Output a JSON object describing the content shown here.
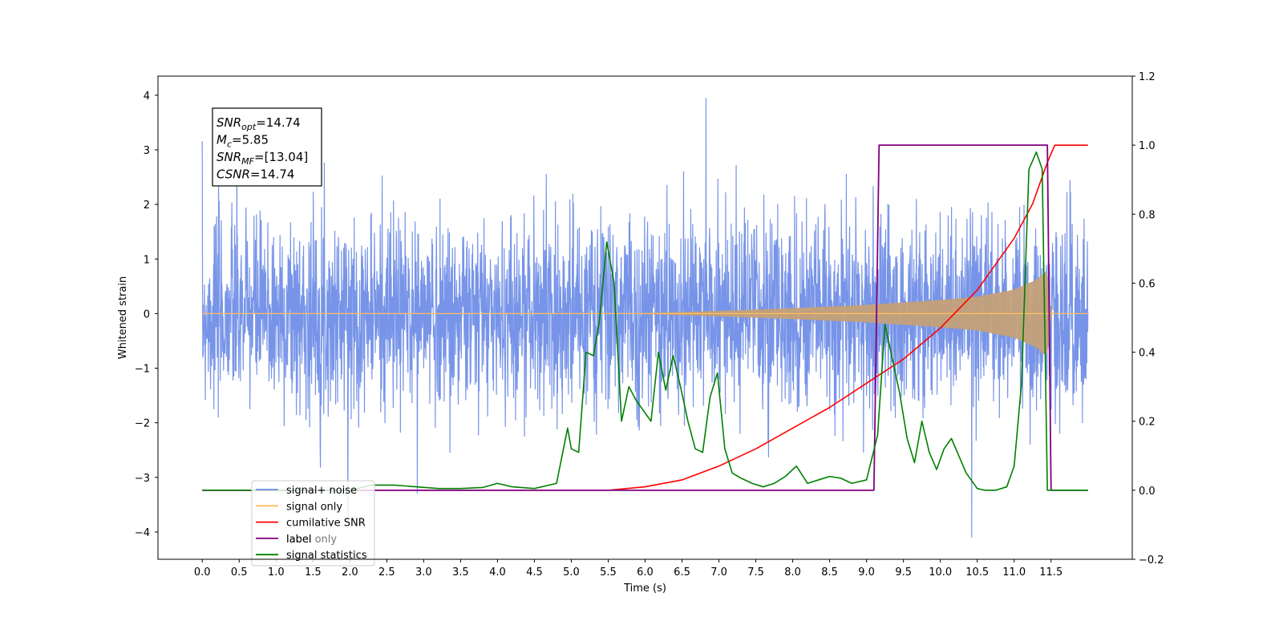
{
  "chart_data": {
    "type": "line",
    "xlabel": "Time (s)",
    "ylabel_left": "Whitened strain",
    "ylabel_right": "",
    "xlim": [
      -0.6,
      12.6
    ],
    "ylim_left": [
      -4.5,
      4.35
    ],
    "ylim_right": [
      -0.2,
      1.2
    ],
    "x_ticks": [
      0.0,
      0.5,
      1.0,
      1.5,
      2.0,
      2.5,
      3.0,
      3.5,
      4.0,
      4.5,
      5.0,
      5.5,
      6.0,
      6.5,
      7.0,
      7.5,
      8.0,
      8.5,
      9.0,
      9.5,
      10.0,
      10.5,
      11.0,
      11.5
    ],
    "x_tick_labels": [
      "0.0",
      "0.5",
      "1.0",
      "1.5",
      "2.0",
      "2.5",
      "3.0",
      "3.5",
      "4.0",
      "4.5",
      "5.0",
      "5.5",
      "6.0",
      "6.5",
      "7.0",
      "7.5",
      "8.0",
      "8.5",
      "9.0",
      "9.5",
      "10.0",
      "10.5",
      "11.0",
      "11.5"
    ],
    "y_left_ticks": [
      -4,
      -3,
      -2,
      -1,
      0,
      1,
      2,
      3,
      4
    ],
    "y_left_tick_labels": [
      "−4",
      "−3",
      "−2",
      "−1",
      "0",
      "1",
      "2",
      "3",
      "4"
    ],
    "y_right_ticks": [
      -0.2,
      0.0,
      0.2,
      0.4,
      0.6,
      0.8,
      1.0,
      1.2
    ],
    "y_right_tick_labels": [
      "−0.2",
      "0.0",
      "0.2",
      "0.4",
      "0.6",
      "0.8",
      "1.0",
      "1.2"
    ],
    "legend": {
      "placement": "lower-left",
      "entries": [
        {
          "label": "signal+ noise",
          "color": "#6b8be6"
        },
        {
          "label": "signal only",
          "color": "#ffbe5c"
        },
        {
          "label": "cumilative SNR",
          "color": "#ff0000"
        },
        {
          "label": "label",
          "color": "#800080"
        },
        {
          "label": "signal statistics",
          "color": "#008000"
        }
      ],
      "hidden_text": "label only"
    },
    "annotation": {
      "lines": [
        {
          "main": "SNR",
          "sub": "opt",
          "rest": "=14.74"
        },
        {
          "main": "M",
          "sub": "c",
          "rest": "=5.85"
        },
        {
          "main": "SNR",
          "sub": "MF",
          "rest": "=[13.04]"
        },
        {
          "main": "CSNR",
          "sub": "",
          "rest": "=14.74"
        }
      ]
    },
    "series": [
      {
        "name": "signal+ noise",
        "axis": "left",
        "color": "#6b8be6",
        "description_envelope": {
          "x_range": [
            0.0,
            12.0
          ],
          "typical_range": [
            -2.0,
            2.0
          ],
          "max": 3.95,
          "min": -4.1
        }
      },
      {
        "name": "signal only",
        "axis": "left",
        "color": "#ffbe5c",
        "envelope": {
          "x": [
            0.0,
            6.0,
            7.0,
            8.0,
            9.0,
            10.0,
            10.5,
            11.0,
            11.3,
            11.45,
            11.5,
            12.0
          ],
          "amp": [
            0.0,
            0.01,
            0.05,
            0.1,
            0.16,
            0.25,
            0.31,
            0.44,
            0.62,
            0.8,
            0.0,
            0.0
          ]
        }
      },
      {
        "name": "cumilative SNR",
        "axis": "right",
        "color": "#ff0000",
        "x": [
          0.0,
          5.5,
          6.0,
          6.5,
          7.0,
          7.5,
          8.0,
          8.5,
          9.0,
          9.5,
          10.0,
          10.5,
          11.0,
          11.25,
          11.45,
          11.55,
          12.0
        ],
        "y": [
          0.0,
          0.0,
          0.01,
          0.03,
          0.07,
          0.12,
          0.18,
          0.24,
          0.31,
          0.38,
          0.47,
          0.58,
          0.73,
          0.83,
          0.95,
          1.0,
          1.0
        ]
      },
      {
        "name": "label",
        "axis": "right",
        "color": "#800080",
        "x": [
          0.0,
          9.1,
          9.17,
          11.45,
          11.5,
          12.0
        ],
        "y": [
          0.0,
          0.0,
          1.0,
          1.0,
          0.0,
          0.0
        ]
      },
      {
        "name": "signal statistics",
        "axis": "right",
        "color": "#008000",
        "x": [
          0.0,
          2.0,
          2.3,
          2.6,
          2.9,
          3.2,
          3.5,
          3.8,
          4.0,
          4.2,
          4.5,
          4.8,
          4.95,
          5.0,
          5.1,
          5.2,
          5.3,
          5.38,
          5.48,
          5.58,
          5.68,
          5.78,
          5.88,
          5.98,
          6.08,
          6.18,
          6.28,
          6.38,
          6.48,
          6.58,
          6.68,
          6.78,
          6.88,
          6.98,
          7.08,
          7.18,
          7.3,
          7.45,
          7.6,
          7.75,
          7.9,
          8.05,
          8.2,
          8.35,
          8.5,
          8.65,
          8.8,
          9.0,
          9.15,
          9.25,
          9.35,
          9.45,
          9.55,
          9.65,
          9.75,
          9.85,
          9.95,
          10.05,
          10.15,
          10.25,
          10.35,
          10.5,
          10.6,
          10.75,
          10.9,
          11.0,
          11.1,
          11.2,
          11.3,
          11.38,
          11.45,
          11.52,
          11.6,
          12.0
        ],
        "y": [
          0.0,
          0.0,
          0.015,
          0.015,
          0.01,
          0.005,
          0.005,
          0.008,
          0.02,
          0.01,
          0.005,
          0.02,
          0.18,
          0.12,
          0.11,
          0.4,
          0.39,
          0.49,
          0.72,
          0.6,
          0.2,
          0.3,
          0.26,
          0.23,
          0.2,
          0.4,
          0.29,
          0.39,
          0.3,
          0.2,
          0.12,
          0.11,
          0.27,
          0.34,
          0.12,
          0.05,
          0.035,
          0.02,
          0.01,
          0.02,
          0.04,
          0.07,
          0.02,
          0.03,
          0.04,
          0.035,
          0.02,
          0.03,
          0.16,
          0.48,
          0.38,
          0.28,
          0.15,
          0.08,
          0.2,
          0.11,
          0.06,
          0.12,
          0.15,
          0.1,
          0.05,
          0.005,
          0.0,
          0.0,
          0.01,
          0.07,
          0.31,
          0.93,
          0.98,
          0.93,
          0.0,
          0.0,
          0.0,
          0.0
        ]
      }
    ]
  }
}
